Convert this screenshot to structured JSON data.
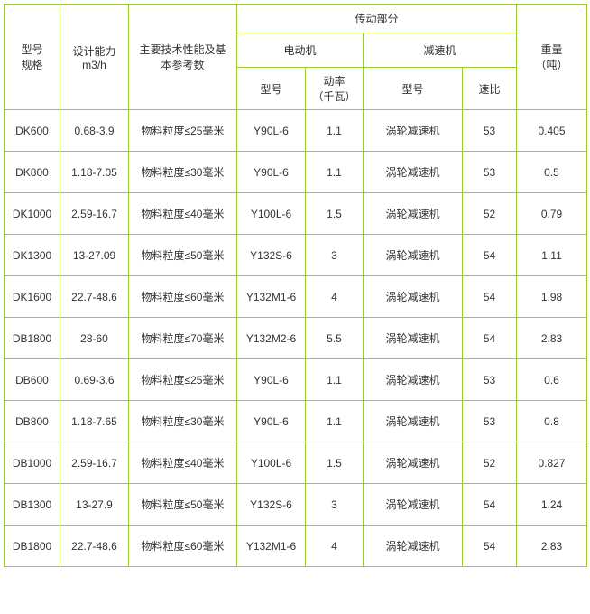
{
  "table": {
    "border_color": "#99cc33",
    "background_color": "#ffffff",
    "text_color": "#333333",
    "font_size": 12,
    "header": {
      "col_model_spec_line1": "型号",
      "col_model_spec_line2": "规格",
      "col_capacity_line1": "设计能力",
      "col_capacity_line2": "m3/h",
      "col_tech_params_line1": "主要技术性能及基",
      "col_tech_params_line2": "本参考数",
      "col_transmission": "传动部分",
      "col_motor": "电动机",
      "col_reducer": "减速机",
      "col_motor_model": "型号",
      "col_motor_power_line1": "动率",
      "col_motor_power_line2": "（千瓦）",
      "col_reducer_model": "型号",
      "col_reducer_ratio": "速比",
      "col_weight_line1": "重量",
      "col_weight_line2": "（吨）"
    },
    "rows": [
      {
        "model": "DK600",
        "capacity": "0.68-3.9",
        "tech": "物料粒度≤25毫米",
        "motor_model": "Y90L-6",
        "motor_power": "1.1",
        "reducer_model": "涡轮减速机",
        "reducer_ratio": "53",
        "weight": "0.405"
      },
      {
        "model": "DK800",
        "capacity": "1.18-7.05",
        "tech": "物料粒度≤30毫米",
        "motor_model": "Y90L-6",
        "motor_power": "1.1",
        "reducer_model": "涡轮减速机",
        "reducer_ratio": "53",
        "weight": "0.5"
      },
      {
        "model": "DK1000",
        "capacity": "2.59-16.7",
        "tech": "物料粒度≤40毫米",
        "motor_model": "Y100L-6",
        "motor_power": "1.5",
        "reducer_model": "涡轮减速机",
        "reducer_ratio": "52",
        "weight": "0.79"
      },
      {
        "model": "DK1300",
        "capacity": "13-27.09",
        "tech": "物料粒度≤50毫米",
        "motor_model": "Y132S-6",
        "motor_power": "3",
        "reducer_model": "涡轮减速机",
        "reducer_ratio": "54",
        "weight": "1.11"
      },
      {
        "model": "DK1600",
        "capacity": "22.7-48.6",
        "tech": "物料粒度≤60毫米",
        "motor_model": "Y132M1-6",
        "motor_power": "4",
        "reducer_model": "涡轮减速机",
        "reducer_ratio": "54",
        "weight": "1.98"
      },
      {
        "model": "DB1800",
        "capacity": "28-60",
        "tech": "物料粒度≤70毫米",
        "motor_model": "Y132M2-6",
        "motor_power": "5.5",
        "reducer_model": "涡轮减速机",
        "reducer_ratio": "54",
        "weight": "2.83"
      },
      {
        "model": "DB600",
        "capacity": "0.69-3.6",
        "tech": "物料粒度≤25毫米",
        "motor_model": "Y90L-6",
        "motor_power": "1.1",
        "reducer_model": "涡轮减速机",
        "reducer_ratio": "53",
        "weight": "0.6"
      },
      {
        "model": "DB800",
        "capacity": "1.18-7.65",
        "tech": "物料粒度≤30毫米",
        "motor_model": "Y90L-6",
        "motor_power": "1.1",
        "reducer_model": "涡轮减速机",
        "reducer_ratio": "53",
        "weight": "0.8"
      },
      {
        "model": "DB1000",
        "capacity": "2.59-16.7",
        "tech": "物料粒度≤40毫米",
        "motor_model": "Y100L-6",
        "motor_power": "1.5",
        "reducer_model": "涡轮减速机",
        "reducer_ratio": "52",
        "weight": "0.827"
      },
      {
        "model": "DB1300",
        "capacity": "13-27.9",
        "tech": "物料粒度≤50毫米",
        "motor_model": "Y132S-6",
        "motor_power": "3",
        "reducer_model": "涡轮减速机",
        "reducer_ratio": "54",
        "weight": "1.24"
      },
      {
        "model": "DB1800",
        "capacity": "22.7-48.6",
        "tech": "物料粒度≤60毫米",
        "motor_model": "Y132M1-6",
        "motor_power": "4",
        "reducer_model": "涡轮减速机",
        "reducer_ratio": "54",
        "weight": "2.83"
      }
    ]
  }
}
